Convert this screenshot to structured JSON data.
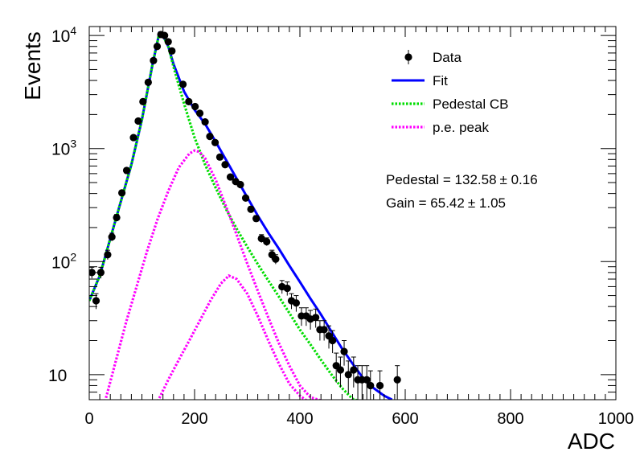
{
  "chart_data": {
    "type": "scatter",
    "xlabel": "ADC",
    "ylabel": "Events",
    "xlim": [
      0,
      1000
    ],
    "ylim": [
      6,
      12000
    ],
    "yscale": "log",
    "x_ticks": [
      "0",
      "200",
      "400",
      "600",
      "800",
      "1000"
    ],
    "y_ticks": [
      {
        "value": 10,
        "base": "10",
        "exp": ""
      },
      {
        "value": 100,
        "base": "10",
        "exp": "2"
      },
      {
        "value": 1000,
        "base": "10",
        "exp": "3"
      },
      {
        "value": 10000,
        "base": "10",
        "exp": "4"
      }
    ],
    "grid": false,
    "legend_position": "top-right",
    "legend": [
      {
        "label": "Data",
        "style": "marker",
        "color": "#000000"
      },
      {
        "label": "Fit",
        "style": "line",
        "color": "#0000ff"
      },
      {
        "label": "Pedestal CB",
        "style": "dotted",
        "color": "#00dd00"
      },
      {
        "label": "p.e. peak",
        "style": "dotted",
        "color": "#ff00ff"
      }
    ],
    "annotations": [
      {
        "prefix": "Pedestal = 132.58",
        "pm": "±",
        "suffix": " 0.16"
      },
      {
        "prefix": "Gain = 65.42",
        "pm": "±",
        "suffix": " 1.05"
      }
    ],
    "series": [
      {
        "name": "Data",
        "kind": "points",
        "color": "#000000",
        "points": [
          {
            "x": 5,
            "y": 80,
            "err": 9
          },
          {
            "x": 13,
            "y": 45,
            "err": 7
          },
          {
            "x": 22,
            "y": 80,
            "err": 9
          },
          {
            "x": 35,
            "y": 115,
            "err": 11
          },
          {
            "x": 43,
            "y": 165,
            "err": 13
          },
          {
            "x": 52,
            "y": 245,
            "err": 16
          },
          {
            "x": 62,
            "y": 405,
            "err": 20
          },
          {
            "x": 71,
            "y": 640,
            "err": 25
          },
          {
            "x": 84,
            "y": 1250,
            "err": 35
          },
          {
            "x": 93,
            "y": 1750,
            "err": 42
          },
          {
            "x": 102,
            "y": 2600,
            "err": 51
          },
          {
            "x": 112,
            "y": 3850,
            "err": 62
          },
          {
            "x": 122,
            "y": 6000,
            "err": 77
          },
          {
            "x": 129,
            "y": 8000,
            "err": 89
          },
          {
            "x": 136,
            "y": 10200,
            "err": 101
          },
          {
            "x": 143,
            "y": 10000,
            "err": 100
          },
          {
            "x": 150,
            "y": 8800,
            "err": 94
          },
          {
            "x": 157,
            "y": 7300,
            "err": 85
          },
          {
            "x": 178,
            "y": 3700,
            "err": 61
          },
          {
            "x": 189,
            "y": 2600,
            "err": 51
          },
          {
            "x": 201,
            "y": 2350,
            "err": 48
          },
          {
            "x": 210,
            "y": 2050,
            "err": 45
          },
          {
            "x": 220,
            "y": 1720,
            "err": 41
          },
          {
            "x": 229,
            "y": 1280,
            "err": 36
          },
          {
            "x": 239,
            "y": 1130,
            "err": 34
          },
          {
            "x": 248,
            "y": 840,
            "err": 29
          },
          {
            "x": 258,
            "y": 720,
            "err": 27
          },
          {
            "x": 268,
            "y": 560,
            "err": 24
          },
          {
            "x": 278,
            "y": 510,
            "err": 23
          },
          {
            "x": 287,
            "y": 480,
            "err": 22
          },
          {
            "x": 297,
            "y": 365,
            "err": 19
          },
          {
            "x": 307,
            "y": 290,
            "err": 17
          },
          {
            "x": 317,
            "y": 240,
            "err": 15
          },
          {
            "x": 327,
            "y": 160,
            "err": 13
          },
          {
            "x": 337,
            "y": 150,
            "err": 12
          },
          {
            "x": 347,
            "y": 115,
            "err": 11
          },
          {
            "x": 354,
            "y": 105,
            "err": 10
          },
          {
            "x": 366,
            "y": 60,
            "err": 8
          },
          {
            "x": 376,
            "y": 58,
            "err": 8
          },
          {
            "x": 384,
            "y": 45,
            "err": 7
          },
          {
            "x": 393,
            "y": 43,
            "err": 7
          },
          {
            "x": 403,
            "y": 33,
            "err": 6
          },
          {
            "x": 412,
            "y": 33,
            "err": 6
          },
          {
            "x": 420,
            "y": 31,
            "err": 6
          },
          {
            "x": 430,
            "y": 32,
            "err": 6
          },
          {
            "x": 438,
            "y": 25,
            "err": 5
          },
          {
            "x": 446,
            "y": 25,
            "err": 5
          },
          {
            "x": 455,
            "y": 22,
            "err": 5
          },
          {
            "x": 462,
            "y": 20,
            "err": 4.5
          },
          {
            "x": 469,
            "y": 12,
            "err": 3.5
          },
          {
            "x": 477,
            "y": 11,
            "err": 3.3
          },
          {
            "x": 484,
            "y": 16,
            "err": 4
          },
          {
            "x": 492,
            "y": 10,
            "err": 3.2
          },
          {
            "x": 502,
            "y": 11,
            "err": 3.3
          },
          {
            "x": 510,
            "y": 9,
            "err": 3
          },
          {
            "x": 518,
            "y": 9,
            "err": 3
          },
          {
            "x": 527,
            "y": 9,
            "err": 3
          },
          {
            "x": 534,
            "y": 8,
            "err": 2.8
          },
          {
            "x": 552,
            "y": 8,
            "err": 2.8
          },
          {
            "x": 585,
            "y": 9,
            "err": 3
          }
        ]
      },
      {
        "name": "Fit",
        "kind": "line",
        "color": "#0000ff",
        "x": [
          0,
          20,
          40,
          60,
          80,
          100,
          120,
          133,
          140,
          150,
          160,
          180,
          200,
          220,
          240,
          260,
          280,
          300,
          320,
          340,
          360,
          380,
          400,
          420,
          440,
          460,
          480,
          500,
          520,
          540,
          560,
          575
        ],
        "y": [
          45,
          75,
          160,
          340,
          720,
          1800,
          5500,
          10500,
          10000,
          8000,
          5600,
          3200,
          2200,
          1650,
          1150,
          790,
          540,
          370,
          255,
          180,
          130,
          92,
          66,
          47,
          34,
          24,
          17,
          12.5,
          9.3,
          7.6,
          6.5,
          6
        ]
      },
      {
        "name": "Pedestal CB",
        "kind": "dotted",
        "color": "#00dd00",
        "x": [
          0,
          20,
          40,
          60,
          80,
          100,
          120,
          133,
          140,
          150,
          160,
          180,
          200,
          220,
          240,
          260,
          280,
          300,
          320,
          340,
          360,
          380,
          400,
          420,
          440,
          460,
          480,
          500,
          515
        ],
        "y": [
          45,
          75,
          160,
          340,
          720,
          1800,
          5500,
          10500,
          10000,
          8000,
          5300,
          2500,
          1250,
          720,
          450,
          290,
          195,
          135,
          95,
          68,
          49,
          35,
          25,
          18.5,
          13.5,
          10,
          7.6,
          6.1,
          5.8
        ]
      },
      {
        "name": "p.e. peak",
        "kind": "dotted",
        "color": "#ff00ff",
        "x": [
          30,
          50,
          70,
          90,
          110,
          130,
          150,
          170,
          190,
          200,
          210,
          220,
          240,
          260,
          280,
          300,
          320,
          340,
          360,
          380,
          400,
          420,
          440,
          460,
          470
        ],
        "y": [
          5.8,
          13,
          29,
          60,
          125,
          240,
          420,
          680,
          900,
          960,
          930,
          820,
          530,
          305,
          172,
          96,
          55,
          32,
          19,
          12,
          8,
          6.3,
          5.9,
          5.8,
          5.8
        ]
      },
      {
        "name": "p.e. peak",
        "kind": "dotted",
        "color": "#ff00ff",
        "x": [
          130,
          150,
          170,
          190,
          210,
          230,
          250,
          265,
          280,
          300,
          320,
          340,
          360,
          380,
          400,
          415
        ],
        "y": [
          5.8,
          9,
          13.5,
          20,
          30,
          45,
          64,
          75,
          70,
          52,
          33,
          20,
          12.5,
          8.3,
          6.5,
          5.8
        ]
      }
    ]
  }
}
